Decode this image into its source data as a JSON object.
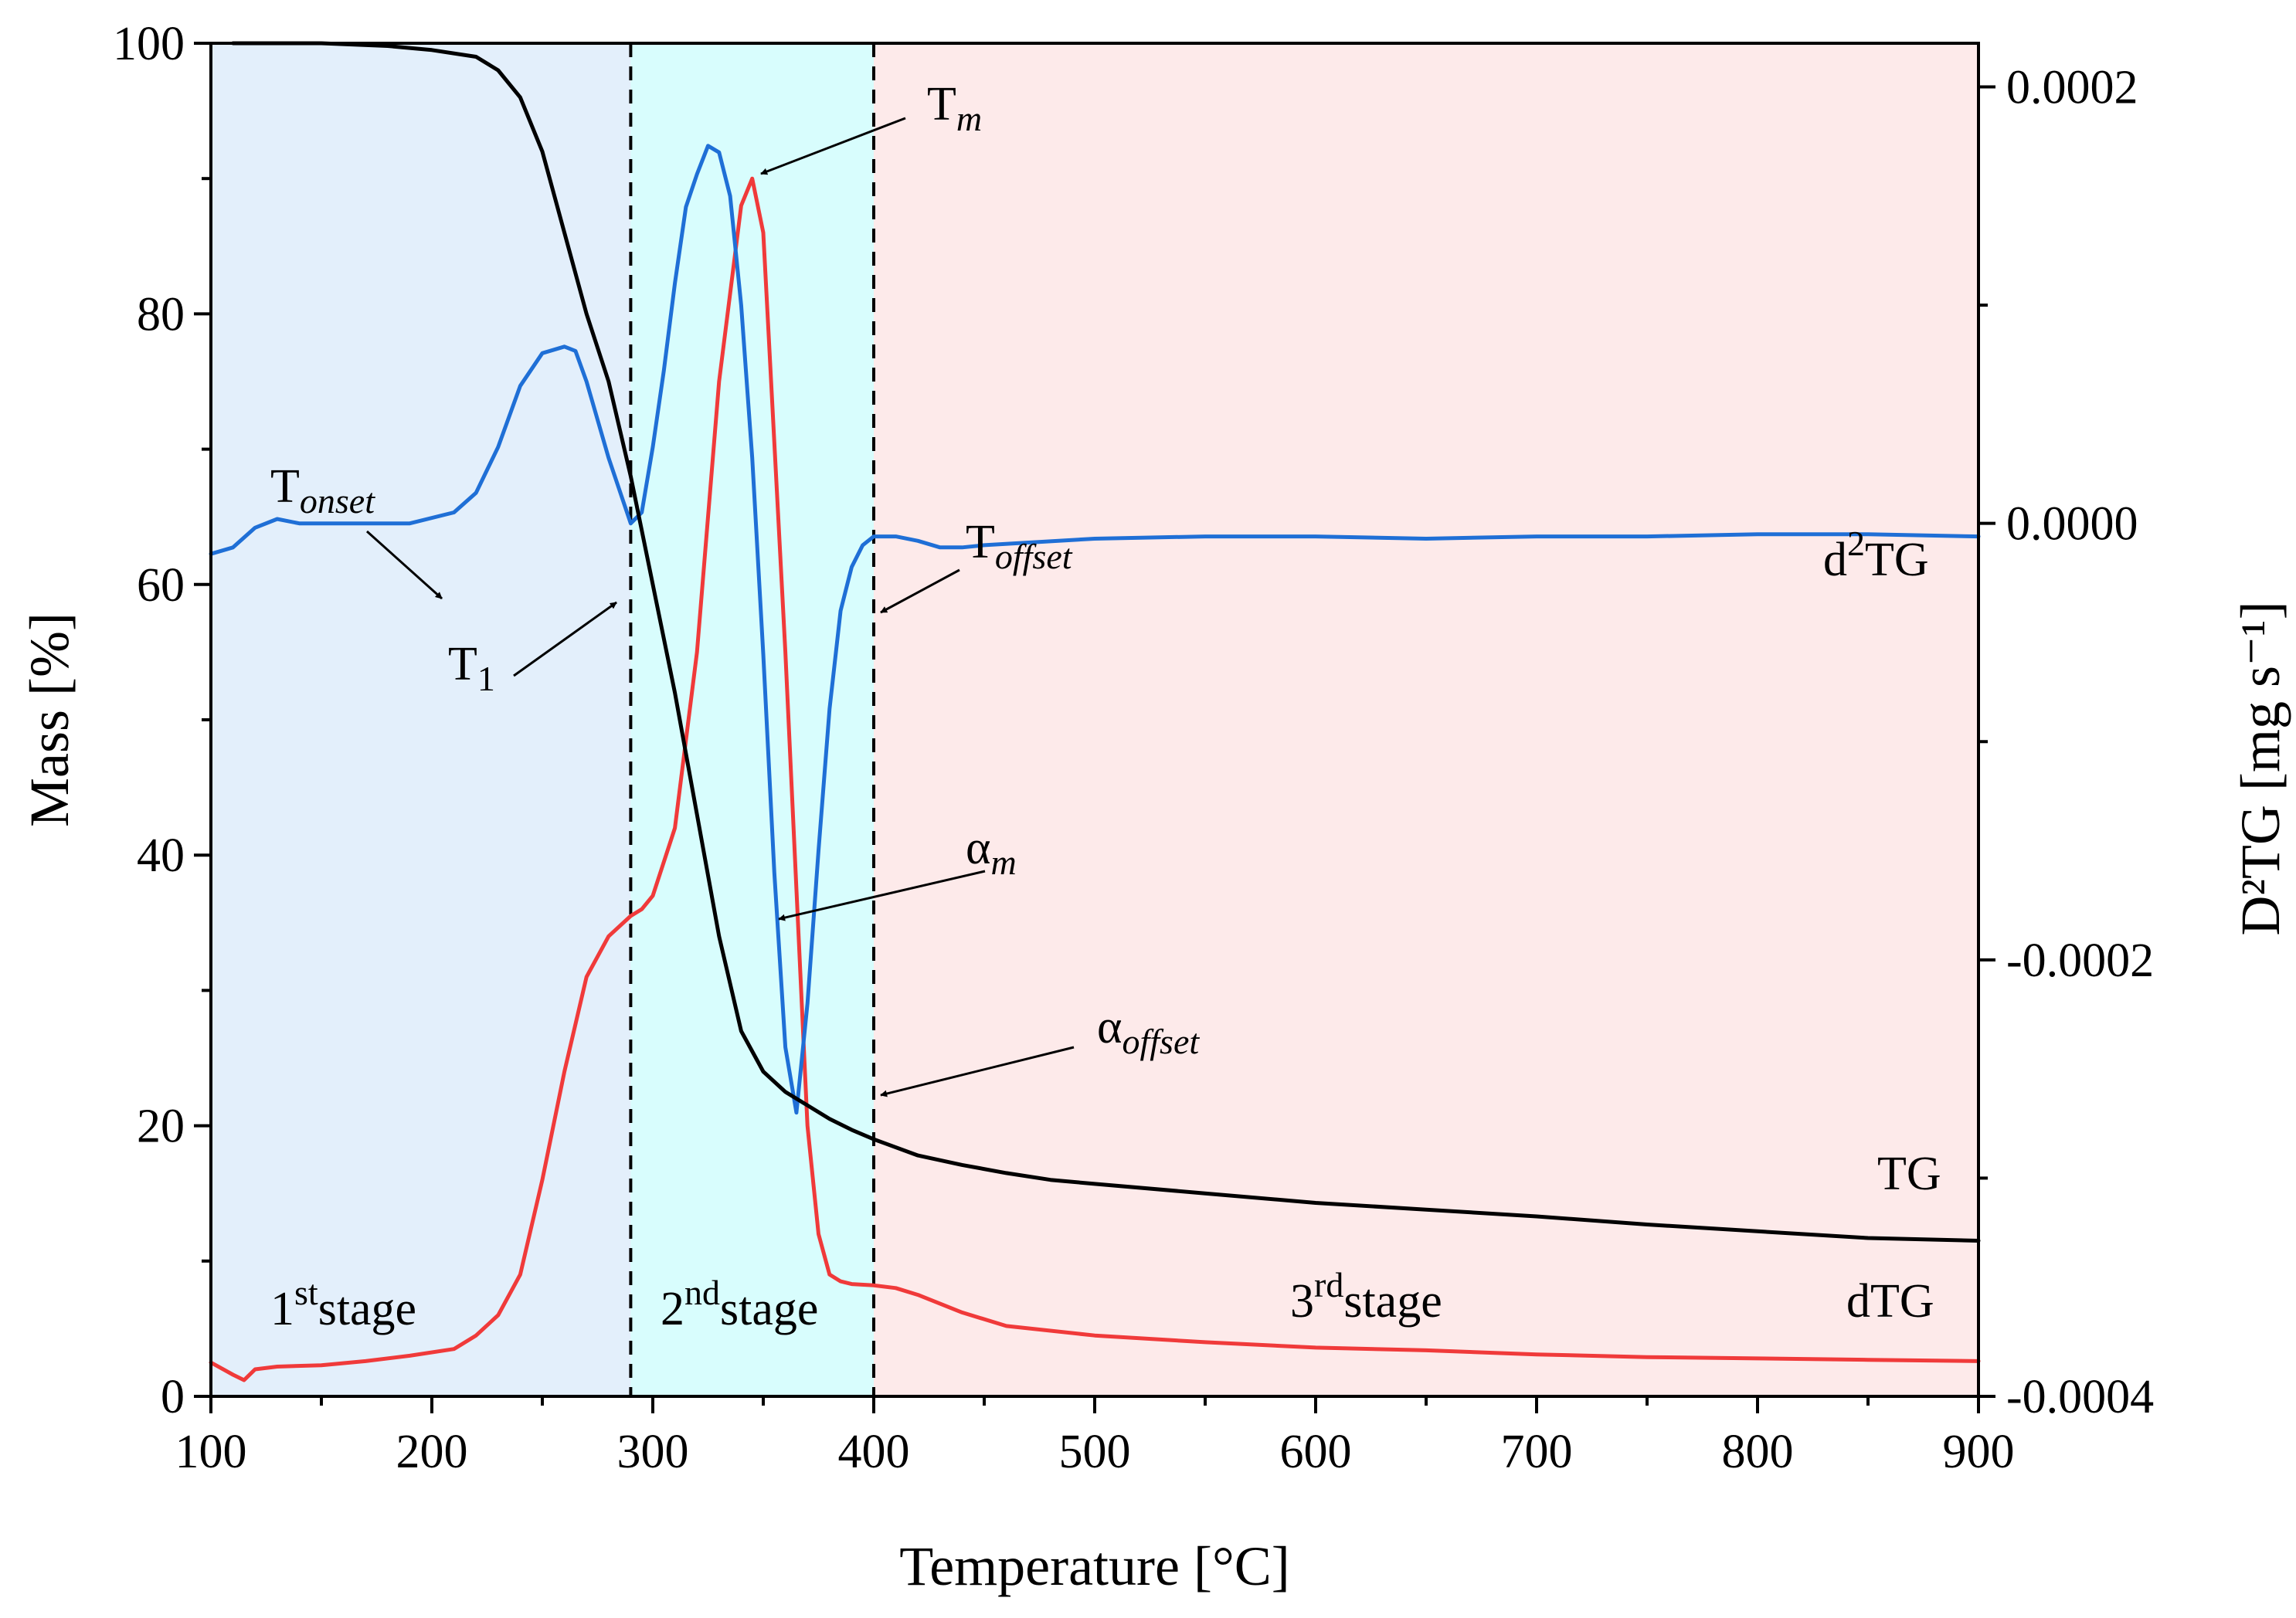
{
  "chart_data": {
    "type": "line",
    "xlabel": "Temperature [°C]",
    "ylabel": "Mass [%]",
    "y2label": "D²TG [mg s⁻¹]",
    "xlim": [
      100,
      900
    ],
    "ylim": [
      0,
      100
    ],
    "y2lim": [
      -0.0004,
      0.00022
    ],
    "x_ticks": [
      "100",
      "200",
      "300",
      "400",
      "500",
      "600",
      "700",
      "800",
      "900"
    ],
    "y_ticks": [
      "0",
      "20",
      "40",
      "60",
      "80",
      "100"
    ],
    "y2_ticks": [
      "-0.0004",
      "-0.0002",
      "0.0000",
      "0.0002"
    ],
    "stage_boundaries": [
      290,
      400
    ],
    "stages": [
      {
        "name": "1st stage",
        "from": 100,
        "to": 290,
        "color": "#e3effb"
      },
      {
        "name": "2nd stage",
        "from": 290,
        "to": 400,
        "color": "#d8fdfd"
      },
      {
        "name": "3rd stage",
        "from": 400,
        "to": 900,
        "color": "#fdeaea"
      }
    ],
    "series": [
      {
        "name": "TG",
        "color": "#000000",
        "axis": "left",
        "x": [
          110,
          150,
          180,
          200,
          220,
          230,
          240,
          250,
          260,
          270,
          280,
          290,
          300,
          310,
          320,
          330,
          340,
          350,
          360,
          370,
          380,
          390,
          400,
          420,
          440,
          460,
          480,
          500,
          550,
          600,
          650,
          700,
          750,
          800,
          850,
          900
        ],
        "values": [
          100,
          100,
          99.8,
          99.5,
          99,
          98,
          96,
          92,
          86,
          80,
          75,
          68,
          60,
          52,
          43,
          34,
          27,
          24,
          22.5,
          21.5,
          20.5,
          19.7,
          19,
          17.8,
          17.1,
          16.5,
          16,
          15.7,
          15,
          14.3,
          13.8,
          13.3,
          12.7,
          12.2,
          11.7,
          11.5
        ]
      },
      {
        "name": "dTG",
        "color": "#f03a3a",
        "axis": "left",
        "x": [
          100,
          110,
          115,
          120,
          130,
          150,
          170,
          190,
          210,
          220,
          230,
          240,
          250,
          260,
          270,
          280,
          290,
          295,
          300,
          310,
          320,
          330,
          340,
          345,
          350,
          360,
          370,
          375,
          380,
          385,
          390,
          400,
          410,
          420,
          440,
          460,
          500,
          550,
          600,
          650,
          700,
          750,
          800,
          850,
          900
        ],
        "values": [
          2.5,
          1.6,
          1.2,
          2.0,
          2.2,
          2.3,
          2.6,
          3.0,
          3.5,
          4.5,
          6,
          9,
          16,
          24,
          31,
          34,
          35.5,
          36,
          37,
          42,
          55,
          75,
          88,
          90,
          86,
          55,
          20,
          12,
          9,
          8.5,
          8.3,
          8.2,
          8,
          7.5,
          6.2,
          5.2,
          4.5,
          4.0,
          3.6,
          3.4,
          3.1,
          2.9,
          2.8,
          2.7,
          2.6
        ]
      },
      {
        "name": "d²TG",
        "color": "#1f6fd6",
        "axis": "right",
        "x": [
          100,
          110,
          120,
          130,
          140,
          150,
          170,
          190,
          210,
          220,
          230,
          240,
          250,
          260,
          265,
          270,
          280,
          290,
          295,
          300,
          305,
          310,
          315,
          320,
          325,
          330,
          335,
          340,
          345,
          350,
          355,
          360,
          365,
          370,
          375,
          380,
          385,
          390,
          395,
          400,
          410,
          420,
          430,
          440,
          450,
          500,
          550,
          600,
          650,
          700,
          750,
          800,
          850,
          900
        ],
        "values": [
          -1.4e-05,
          -1.1e-05,
          -2e-06,
          2e-06,
          0.0,
          0.0,
          0.0,
          0.0,
          5e-06,
          1.4e-05,
          3.5e-05,
          6.3e-05,
          7.8e-05,
          8.1e-05,
          7.9e-05,
          6.5e-05,
          3e-05,
          0.0,
          5e-06,
          3.5e-05,
          7e-05,
          0.00011,
          0.000145,
          0.00016,
          0.000173,
          0.00017,
          0.00015,
          0.0001,
          3e-05,
          -6e-05,
          -0.00016,
          -0.00024,
          -0.00027,
          -0.00022,
          -0.00015,
          -8.5e-05,
          -4e-05,
          -2e-05,
          -1e-05,
          -6e-06,
          -6e-06,
          -8e-06,
          -1.1e-05,
          -1.1e-05,
          -1e-05,
          -7e-06,
          -6e-06,
          -6e-06,
          -7e-06,
          -6e-06,
          -6e-06,
          -5e-06,
          -5e-06,
          -6e-06
        ]
      }
    ],
    "annotations": [
      {
        "id": "onset",
        "base": "T",
        "sub": "onset",
        "x": 205,
        "y": 58.3
      },
      {
        "id": "t1",
        "base": "T",
        "sub": "1",
        "x": 290,
        "y": 59.8
      },
      {
        "id": "tm",
        "base": "T",
        "sub": "m",
        "x": 345,
        "y": 90.7
      },
      {
        "id": "offset",
        "base": "T",
        "sub": "offset",
        "x": 400,
        "y": 58.3
      },
      {
        "id": "alpham",
        "base": "α",
        "sub": "m",
        "x": 358,
        "y": 35.5
      },
      {
        "id": "alphaoffset",
        "base": "α",
        "sub": "offset",
        "x": 400,
        "y": 22.3
      }
    ],
    "curve_labels": [
      {
        "id": "tg",
        "base": "TG",
        "sup": ""
      },
      {
        "id": "dtg",
        "base": "dTG",
        "sup": ""
      },
      {
        "id": "d2tg",
        "base": "d",
        "sup": "2",
        "rest": "TG"
      }
    ],
    "stage_labels": [
      {
        "id": "s1",
        "num": "1",
        "sup": "st",
        "word": "stage"
      },
      {
        "id": "s2",
        "num": "2",
        "sup": "nd",
        "word": "stage"
      },
      {
        "id": "s3",
        "num": "3",
        "sup": "rd",
        "word": "stage"
      }
    ]
  }
}
